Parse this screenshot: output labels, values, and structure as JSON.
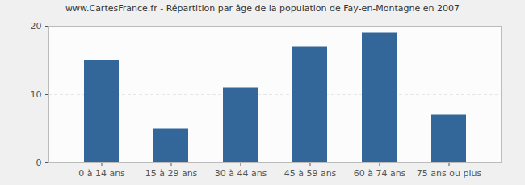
{
  "chart_data": {
    "type": "bar",
    "title": "www.CartesFrance.fr - Répartition par âge de la population de Fay-en-Montagne en 2007",
    "categories": [
      "0 à 14 ans",
      "15 à 29 ans",
      "30 à 44 ans",
      "45 à 59 ans",
      "60 à 74 ans",
      "75 ans ou plus"
    ],
    "values": [
      15,
      5,
      11,
      17,
      19,
      7
    ],
    "color": "#336699",
    "ylim": [
      0,
      20
    ],
    "yticks": [
      0,
      10,
      20
    ],
    "grid": true
  }
}
